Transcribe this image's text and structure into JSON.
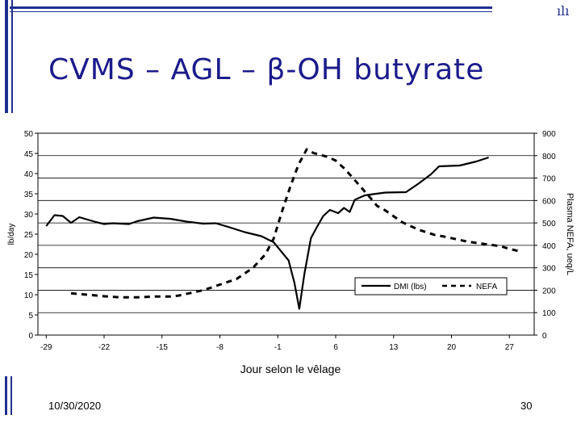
{
  "slide": {
    "title": "CVMS – AGL – β-OH butyrate",
    "date": "10/30/2020",
    "page_number": "30",
    "accent_color": "#1f2f8f",
    "title_color": "#1b1b8c",
    "logo_icon": "university-logo-icon"
  },
  "chart_data": {
    "type": "line",
    "xlabel": "Jour selon le vêlage",
    "ylabel": "lb/day",
    "ylabel_right": "Plasma NEFA, ueq/L",
    "xlim": [
      -30,
      30
    ],
    "ylim": [
      0,
      50
    ],
    "ylim_right": [
      0,
      900
    ],
    "x_ticks": [
      "-29",
      "-22",
      "-15",
      "-8",
      "-1",
      "6",
      "13",
      "20",
      "27"
    ],
    "y_ticks": [
      "0",
      "5",
      "10",
      "15",
      "20",
      "25",
      "30",
      "35",
      "40",
      "45",
      "50"
    ],
    "y_ticks_right": [
      "0",
      "100",
      "200",
      "300",
      "400",
      "500",
      "600",
      "700",
      "800",
      "900"
    ],
    "grid": "horizontal",
    "legend_placement": "bottom-right",
    "series": [
      {
        "name": "DMI (lbs)",
        "axis": "left",
        "style": "solid",
        "points": [
          [
            -29,
            27
          ],
          [
            -28,
            29.7
          ],
          [
            -27,
            29.5
          ],
          [
            -26,
            27.8
          ],
          [
            -25,
            29.2
          ],
          [
            -23,
            28
          ],
          [
            -22,
            27.5
          ],
          [
            -21,
            27.7
          ],
          [
            -19,
            27.5
          ],
          [
            -18,
            28.2
          ],
          [
            -16,
            29.1
          ],
          [
            -14,
            28.8
          ],
          [
            -12,
            28.1
          ],
          [
            -10,
            27.6
          ],
          [
            -8.5,
            27.7
          ],
          [
            -7,
            26.8
          ],
          [
            -5,
            25.5
          ],
          [
            -3,
            24.5
          ],
          [
            -1.5,
            23
          ],
          [
            -0.5,
            20.5
          ],
          [
            0.3,
            18.5
          ],
          [
            1,
            13
          ],
          [
            1.6,
            6.5
          ],
          [
            2.2,
            15
          ],
          [
            3,
            24
          ],
          [
            3.8,
            27
          ],
          [
            4.5,
            29.5
          ],
          [
            5.3,
            31
          ],
          [
            6.3,
            30.2
          ],
          [
            7,
            31.5
          ],
          [
            7.7,
            30.5
          ],
          [
            8.3,
            33.5
          ],
          [
            9.5,
            34.6
          ],
          [
            10.5,
            34.9
          ],
          [
            12,
            35.3
          ],
          [
            14.5,
            35.4
          ],
          [
            16,
            37.5
          ],
          [
            17.5,
            39.8
          ],
          [
            18.5,
            41.8
          ],
          [
            21,
            42.0
          ],
          [
            23,
            43.0
          ],
          [
            24.5,
            44.0
          ]
        ]
      },
      {
        "name": "NEFA",
        "axis": "right",
        "style": "dashed",
        "points": [
          [
            -26,
            186
          ],
          [
            -24,
            180
          ],
          [
            -22,
            173
          ],
          [
            -20,
            168
          ],
          [
            -18,
            168
          ],
          [
            -16,
            172
          ],
          [
            -14,
            172
          ],
          [
            -13,
            176
          ],
          [
            -10,
            200
          ],
          [
            -8,
            225
          ],
          [
            -6,
            250
          ],
          [
            -4,
            300
          ],
          [
            -2.5,
            360
          ],
          [
            -1.5,
            430
          ],
          [
            -0.5,
            550
          ],
          [
            0.5,
            660
          ],
          [
            1.5,
            760
          ],
          [
            2.5,
            828
          ],
          [
            3.3,
            812
          ],
          [
            4,
            805
          ],
          [
            5,
            795
          ],
          [
            6,
            778
          ],
          [
            7,
            744
          ],
          [
            8,
            704
          ],
          [
            10,
            620
          ],
          [
            11,
            576
          ],
          [
            12,
            556
          ],
          [
            14,
            504
          ],
          [
            16,
            470
          ],
          [
            18,
            446
          ],
          [
            19,
            440
          ],
          [
            21,
            424
          ],
          [
            22,
            416
          ],
          [
            24,
            406
          ],
          [
            26,
            396
          ],
          [
            27,
            384
          ],
          [
            28,
            376
          ]
        ]
      }
    ]
  }
}
